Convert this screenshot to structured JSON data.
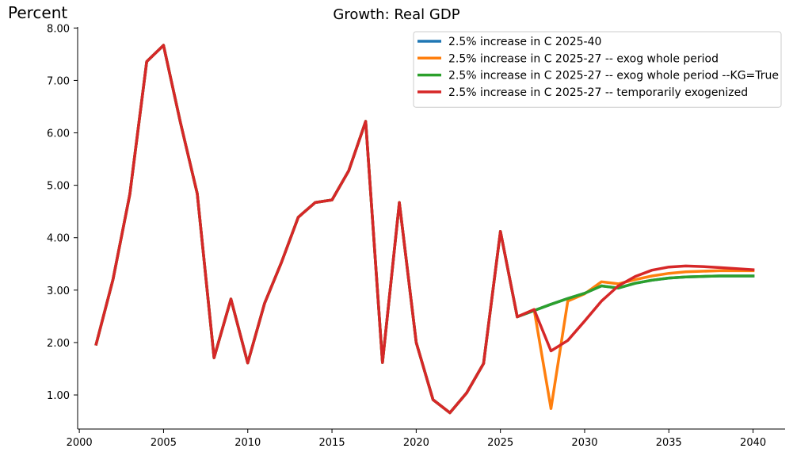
{
  "chart_data": {
    "type": "line",
    "title": "Growth: Real GDP",
    "ylabel": "Percent",
    "xlabel": "",
    "xlim": [
      1999.9,
      2041.9
    ],
    "ylim": [
      0.35,
      8.02
    ],
    "xticks": [
      2000,
      2005,
      2010,
      2015,
      2020,
      2025,
      2030,
      2035,
      2040
    ],
    "yticks": [
      1,
      2,
      3,
      4,
      5,
      6,
      7,
      8
    ],
    "ytick_labels": [
      "1.00",
      "2.00",
      "3.00",
      "4.00",
      "5.00",
      "6.00",
      "7.00",
      "8.00"
    ],
    "grid": false,
    "legend_position": "top-right",
    "x": [
      2001,
      2002,
      2003,
      2004,
      2005,
      2006,
      2007,
      2008,
      2009,
      2010,
      2011,
      2012,
      2013,
      2014,
      2015,
      2016,
      2017,
      2018,
      2019,
      2020,
      2021,
      2022,
      2023,
      2024,
      2025,
      2026,
      2027,
      2028,
      2029,
      2030,
      2031,
      2032,
      2033,
      2034,
      2035,
      2036,
      2037,
      2038,
      2039,
      2040
    ],
    "series": [
      {
        "name": "2.5% increase in C 2025-40",
        "color": "#1f77b4",
        "values": [
          1.97,
          3.2,
          4.83,
          7.36,
          7.67,
          6.2,
          4.84,
          1.71,
          2.83,
          1.61,
          2.75,
          3.53,
          4.39,
          4.67,
          4.72,
          5.28,
          6.22,
          1.62,
          4.67,
          2.0,
          0.91,
          0.66,
          1.04,
          1.6,
          4.12,
          2.49,
          2.61,
          2.73,
          2.84,
          2.94,
          3.08,
          3.04,
          3.13,
          3.19,
          3.23,
          3.25,
          3.26,
          3.27,
          3.27,
          3.27
        ]
      },
      {
        "name": "2.5% increase in C 2025-27 -- exog whole period",
        "color": "#ff7f0e",
        "values": [
          1.97,
          3.2,
          4.83,
          7.36,
          7.67,
          6.2,
          4.84,
          1.71,
          2.83,
          1.61,
          2.75,
          3.53,
          4.39,
          4.67,
          4.72,
          5.28,
          6.22,
          1.62,
          4.67,
          2.0,
          0.91,
          0.66,
          1.04,
          1.6,
          4.12,
          2.49,
          2.63,
          0.74,
          2.79,
          2.93,
          3.16,
          3.12,
          3.2,
          3.27,
          3.32,
          3.35,
          3.36,
          3.37,
          3.37,
          3.37
        ]
      },
      {
        "name": "2.5% increase in C 2025-27 -- exog whole period --KG=True",
        "color": "#2ca02c",
        "values": [
          1.97,
          3.2,
          4.83,
          7.36,
          7.67,
          6.2,
          4.84,
          1.71,
          2.83,
          1.61,
          2.75,
          3.53,
          4.39,
          4.67,
          4.72,
          5.28,
          6.22,
          1.62,
          4.67,
          2.0,
          0.91,
          0.66,
          1.04,
          1.6,
          4.12,
          2.49,
          2.61,
          2.73,
          2.84,
          2.94,
          3.08,
          3.04,
          3.13,
          3.19,
          3.23,
          3.25,
          3.26,
          3.27,
          3.27,
          3.27
        ]
      },
      {
        "name": "2.5% increase in C 2025-27 -- temporarily exogenized",
        "color": "#d62728",
        "values": [
          1.97,
          3.2,
          4.83,
          7.36,
          7.67,
          6.2,
          4.84,
          1.71,
          2.83,
          1.61,
          2.75,
          3.53,
          4.39,
          4.67,
          4.72,
          5.28,
          6.22,
          1.62,
          4.67,
          2.0,
          0.91,
          0.66,
          1.04,
          1.6,
          4.12,
          2.49,
          2.63,
          1.84,
          2.04,
          2.41,
          2.79,
          3.08,
          3.26,
          3.38,
          3.44,
          3.46,
          3.45,
          3.43,
          3.41,
          3.39
        ]
      }
    ]
  }
}
